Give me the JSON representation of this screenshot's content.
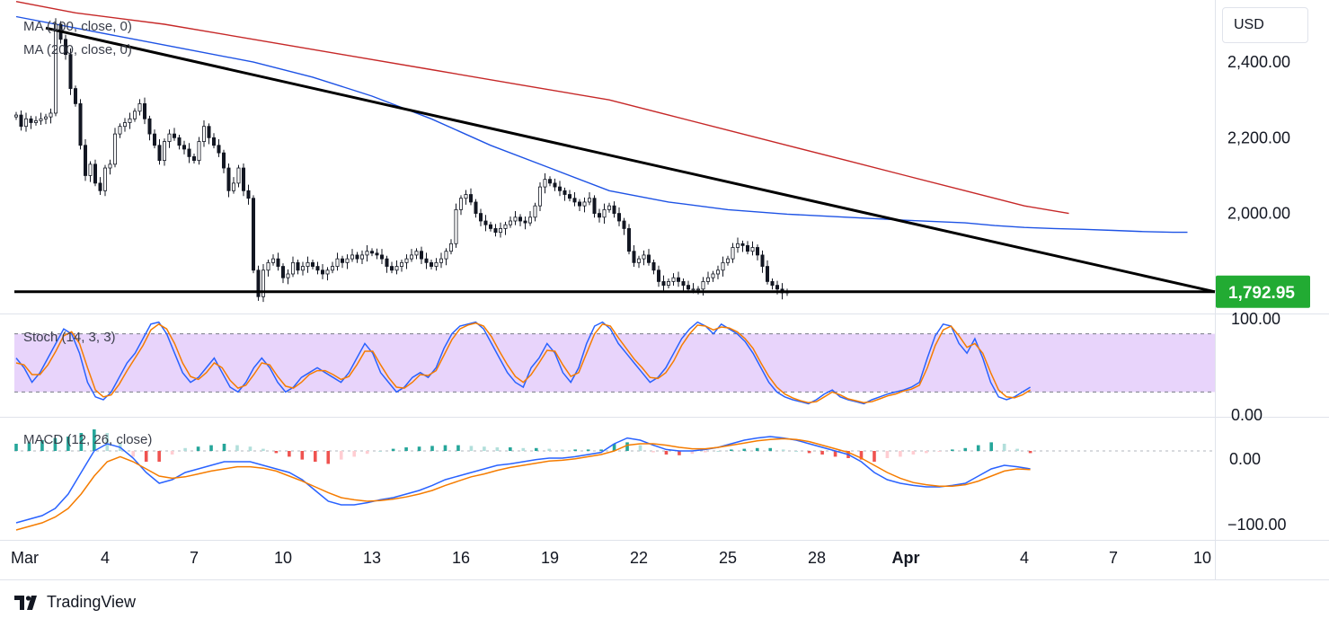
{
  "currency_button": "USD",
  "brand": "TradingView",
  "chart_data": [
    {
      "type": "candlestick",
      "panel": "price",
      "legend": [
        {
          "text": "MA (100, close, 0)",
          "color": "#2962ff"
        },
        {
          "text": "MA (200, close, 0)",
          "color": "#c62828"
        }
      ],
      "y_ticks": [
        "2,400.00",
        "2,200.00",
        "2,000.00"
      ],
      "y_tick_values": [
        2400,
        2200,
        2000
      ],
      "ylim": [
        1745,
        2545
      ],
      "last_price": "1,792.95",
      "last_price_value": 1792.95,
      "x_ticks": [
        "Mar",
        "4",
        "7",
        "10",
        "13",
        "16",
        "19",
        "22",
        "25",
        "28",
        "Apr",
        "4",
        "7",
        "10"
      ],
      "x_tick_days": [
        1,
        4,
        7,
        10,
        13,
        16,
        19,
        22,
        25,
        28,
        31,
        35,
        38,
        41
      ],
      "candles_start_day": 1,
      "candles_per_day": 6,
      "close": [
        2260,
        2230,
        2250,
        2240,
        2245,
        2250,
        2255,
        2265,
        2500,
        2460,
        2420,
        2330,
        2290,
        2180,
        2100,
        2130,
        2080,
        2060,
        2120,
        2130,
        2210,
        2230,
        2240,
        2250,
        2270,
        2290,
        2250,
        2210,
        2180,
        2140,
        2190,
        2210,
        2200,
        2180,
        2170,
        2150,
        2140,
        2190,
        2230,
        2200,
        2180,
        2160,
        2120,
        2060,
        2080,
        2120,
        2060,
        2040,
        1850,
        1780,
        1850,
        1870,
        1880,
        1860,
        1830,
        1840,
        1870,
        1850,
        1860,
        1870,
        1860,
        1850,
        1840,
        1850,
        1860,
        1880,
        1870,
        1880,
        1890,
        1880,
        1890,
        1900,
        1895,
        1890,
        1880,
        1860,
        1850,
        1860,
        1870,
        1880,
        1890,
        1900,
        1880,
        1870,
        1860,
        1870,
        1880,
        1900,
        1920,
        2010,
        2040,
        2050,
        2030,
        2000,
        1980,
        1970,
        1960,
        1950,
        1960,
        1970,
        1980,
        1990,
        1980,
        1975,
        1990,
        2020,
        2070,
        2090,
        2080,
        2070,
        2060,
        2050,
        2040,
        2030,
        2020,
        2030,
        2040,
        2000,
        1990,
        2010,
        2020,
        2000,
        1980,
        1960,
        1900,
        1870,
        1880,
        1890,
        1870,
        1850,
        1820,
        1810,
        1820,
        1830,
        1820,
        1810,
        1800,
        1800,
        1800,
        1820,
        1830,
        1840,
        1850,
        1870,
        1880,
        1910,
        1920,
        1915,
        1900,
        1910,
        1890,
        1860,
        1820,
        1810,
        1800,
        1790,
        1792.95
      ],
      "ma100": [
        2520,
        2490,
        2460,
        2430,
        2400,
        2360,
        2310,
        2250,
        2180,
        2120,
        2060,
        2030,
        2010,
        1998,
        1990,
        1982,
        1975,
        1968,
        1963,
        1960,
        1958,
        1955,
        1952,
        1950,
        1950
      ],
      "ma100_days": [
        1,
        3,
        5,
        7,
        9,
        11,
        13,
        15,
        17,
        19,
        21,
        23,
        25,
        27,
        29,
        31,
        33,
        34,
        35,
        36,
        37,
        38,
        39,
        40,
        40.5
      ],
      "ma200": [
        2560,
        2530,
        2500,
        2460,
        2420,
        2380,
        2340,
        2300,
        2260,
        2220,
        2180,
        2140,
        2100,
        2060,
        2020,
        2000
      ],
      "ma200_days": [
        1,
        3,
        6,
        9,
        12,
        15,
        18,
        21,
        23,
        25,
        27,
        29,
        31,
        33,
        35,
        36.5
      ],
      "trendline": {
        "from_day": 2,
        "from_price": 2490,
        "to_day": 41,
        "to_price": 1792.95
      },
      "support": 1792.95
    },
    {
      "type": "line",
      "panel": "stochastic",
      "legend": "Stoch (14, 3, 3)",
      "y_ticks": [
        "100.00",
        "0.00"
      ],
      "ylim": [
        0,
        100
      ],
      "upper_band": 80,
      "lower_band": 20,
      "series": [
        {
          "name": "%K",
          "color": "#2962ff",
          "values": [
            55,
            45,
            30,
            40,
            55,
            70,
            85,
            80,
            60,
            30,
            15,
            12,
            20,
            35,
            50,
            60,
            75,
            90,
            92,
            80,
            60,
            40,
            30,
            35,
            45,
            55,
            40,
            25,
            20,
            30,
            45,
            55,
            45,
            30,
            20,
            25,
            35,
            40,
            45,
            40,
            35,
            30,
            40,
            55,
            70,
            60,
            40,
            30,
            20,
            25,
            35,
            40,
            35,
            45,
            65,
            80,
            88,
            90,
            92,
            85,
            70,
            55,
            40,
            30,
            25,
            45,
            55,
            70,
            60,
            40,
            30,
            45,
            70,
            88,
            92,
            85,
            70,
            60,
            50,
            40,
            30,
            35,
            45,
            60,
            75,
            85,
            92,
            88,
            80,
            90,
            85,
            80,
            72,
            60,
            45,
            30,
            20,
            15,
            12,
            10,
            8,
            12,
            18,
            22,
            15,
            12,
            10,
            8,
            12,
            15,
            18,
            20,
            22,
            25,
            30,
            55,
            78,
            90,
            88,
            70,
            60,
            75,
            55,
            30,
            15,
            12,
            15,
            20,
            25
          ]
        },
        {
          "name": "%D",
          "color": "#f57c00",
          "values": [
            50,
            48,
            38,
            38,
            48,
            62,
            78,
            82,
            70,
            45,
            22,
            15,
            17,
            28,
            42,
            55,
            68,
            84,
            90,
            85,
            70,
            50,
            36,
            33,
            40,
            50,
            45,
            32,
            24,
            27,
            38,
            50,
            48,
            36,
            26,
            24,
            30,
            38,
            42,
            42,
            38,
            33,
            36,
            48,
            62,
            62,
            48,
            35,
            25,
            24,
            30,
            38,
            37,
            42,
            58,
            74,
            85,
            89,
            91,
            88,
            77,
            62,
            48,
            36,
            30,
            38,
            50,
            63,
            62,
            48,
            36,
            40,
            60,
            80,
            90,
            88,
            76,
            65,
            54,
            45,
            35,
            34,
            40,
            52,
            68,
            80,
            89,
            88,
            84,
            87,
            86,
            82,
            75,
            65,
            50,
            36,
            25,
            18,
            14,
            11,
            9,
            10,
            15,
            20,
            17,
            13,
            11,
            9,
            10,
            13,
            16,
            18,
            21,
            23,
            27,
            45,
            68,
            84,
            88,
            78,
            66,
            70,
            60,
            40,
            22,
            15,
            14,
            17,
            22
          ]
        }
      ]
    },
    {
      "type": "bar+line",
      "panel": "macd",
      "legend": "MACD (12, 26, close)",
      "y_ticks": [
        "0.00",
        "−100.00"
      ],
      "ylim": [
        -120,
        40
      ],
      "series": [
        {
          "name": "MACD",
          "color": "#2962ff",
          "values": [
            -100,
            -95,
            -90,
            -80,
            -60,
            -30,
            0,
            10,
            5,
            -10,
            -30,
            -45,
            -40,
            -30,
            -25,
            -20,
            -15,
            -15,
            -15,
            -20,
            -25,
            -30,
            -40,
            -55,
            -70,
            -75,
            -75,
            -72,
            -68,
            -65,
            -60,
            -55,
            -48,
            -40,
            -35,
            -30,
            -25,
            -20,
            -18,
            -15,
            -12,
            -10,
            -10,
            -8,
            -5,
            -2,
            10,
            18,
            15,
            8,
            2,
            0,
            0,
            2,
            5,
            10,
            15,
            18,
            20,
            18,
            15,
            10,
            5,
            0,
            -5,
            -15,
            -30,
            -40,
            -45,
            -48,
            -50,
            -50,
            -48,
            -45,
            -35,
            -25,
            -20,
            -22,
            -25
          ]
        },
        {
          "name": "Signal",
          "color": "#f57c00",
          "values": [
            -110,
            -105,
            -100,
            -92,
            -80,
            -60,
            -35,
            -15,
            -8,
            -15,
            -25,
            -35,
            -38,
            -36,
            -32,
            -28,
            -25,
            -22,
            -22,
            -24,
            -28,
            -35,
            -42,
            -50,
            -58,
            -65,
            -68,
            -70,
            -69,
            -67,
            -64,
            -60,
            -55,
            -48,
            -42,
            -36,
            -32,
            -27,
            -23,
            -20,
            -17,
            -14,
            -13,
            -11,
            -8,
            -5,
            0,
            8,
            10,
            10,
            8,
            5,
            3,
            3,
            5,
            8,
            11,
            14,
            16,
            17,
            16,
            13,
            8,
            3,
            -2,
            -10,
            -20,
            -30,
            -38,
            -44,
            -47,
            -49,
            -49,
            -47,
            -42,
            -35,
            -28,
            -25,
            -26
          ]
        },
        {
          "name": "Histogram",
          "values": [
            10,
            12,
            15,
            18,
            20,
            25,
            30,
            25,
            10,
            -8,
            -15,
            -15,
            -5,
            4,
            6,
            8,
            10,
            8,
            6,
            3,
            -3,
            -8,
            -12,
            -15,
            -18,
            -12,
            -8,
            -4,
            0,
            3,
            5,
            6,
            7,
            8,
            8,
            7,
            6,
            5,
            5,
            4,
            4,
            3,
            2,
            2,
            2,
            2,
            10,
            12,
            8,
            -2,
            -5,
            -6,
            -4,
            -2,
            0,
            2,
            3,
            4,
            4,
            2,
            0,
            -3,
            -5,
            -8,
            -10,
            -12,
            -15,
            -10,
            -8,
            -5,
            -3,
            -1,
            2,
            4,
            8,
            12,
            10,
            3,
            -3
          ]
        }
      ]
    }
  ]
}
